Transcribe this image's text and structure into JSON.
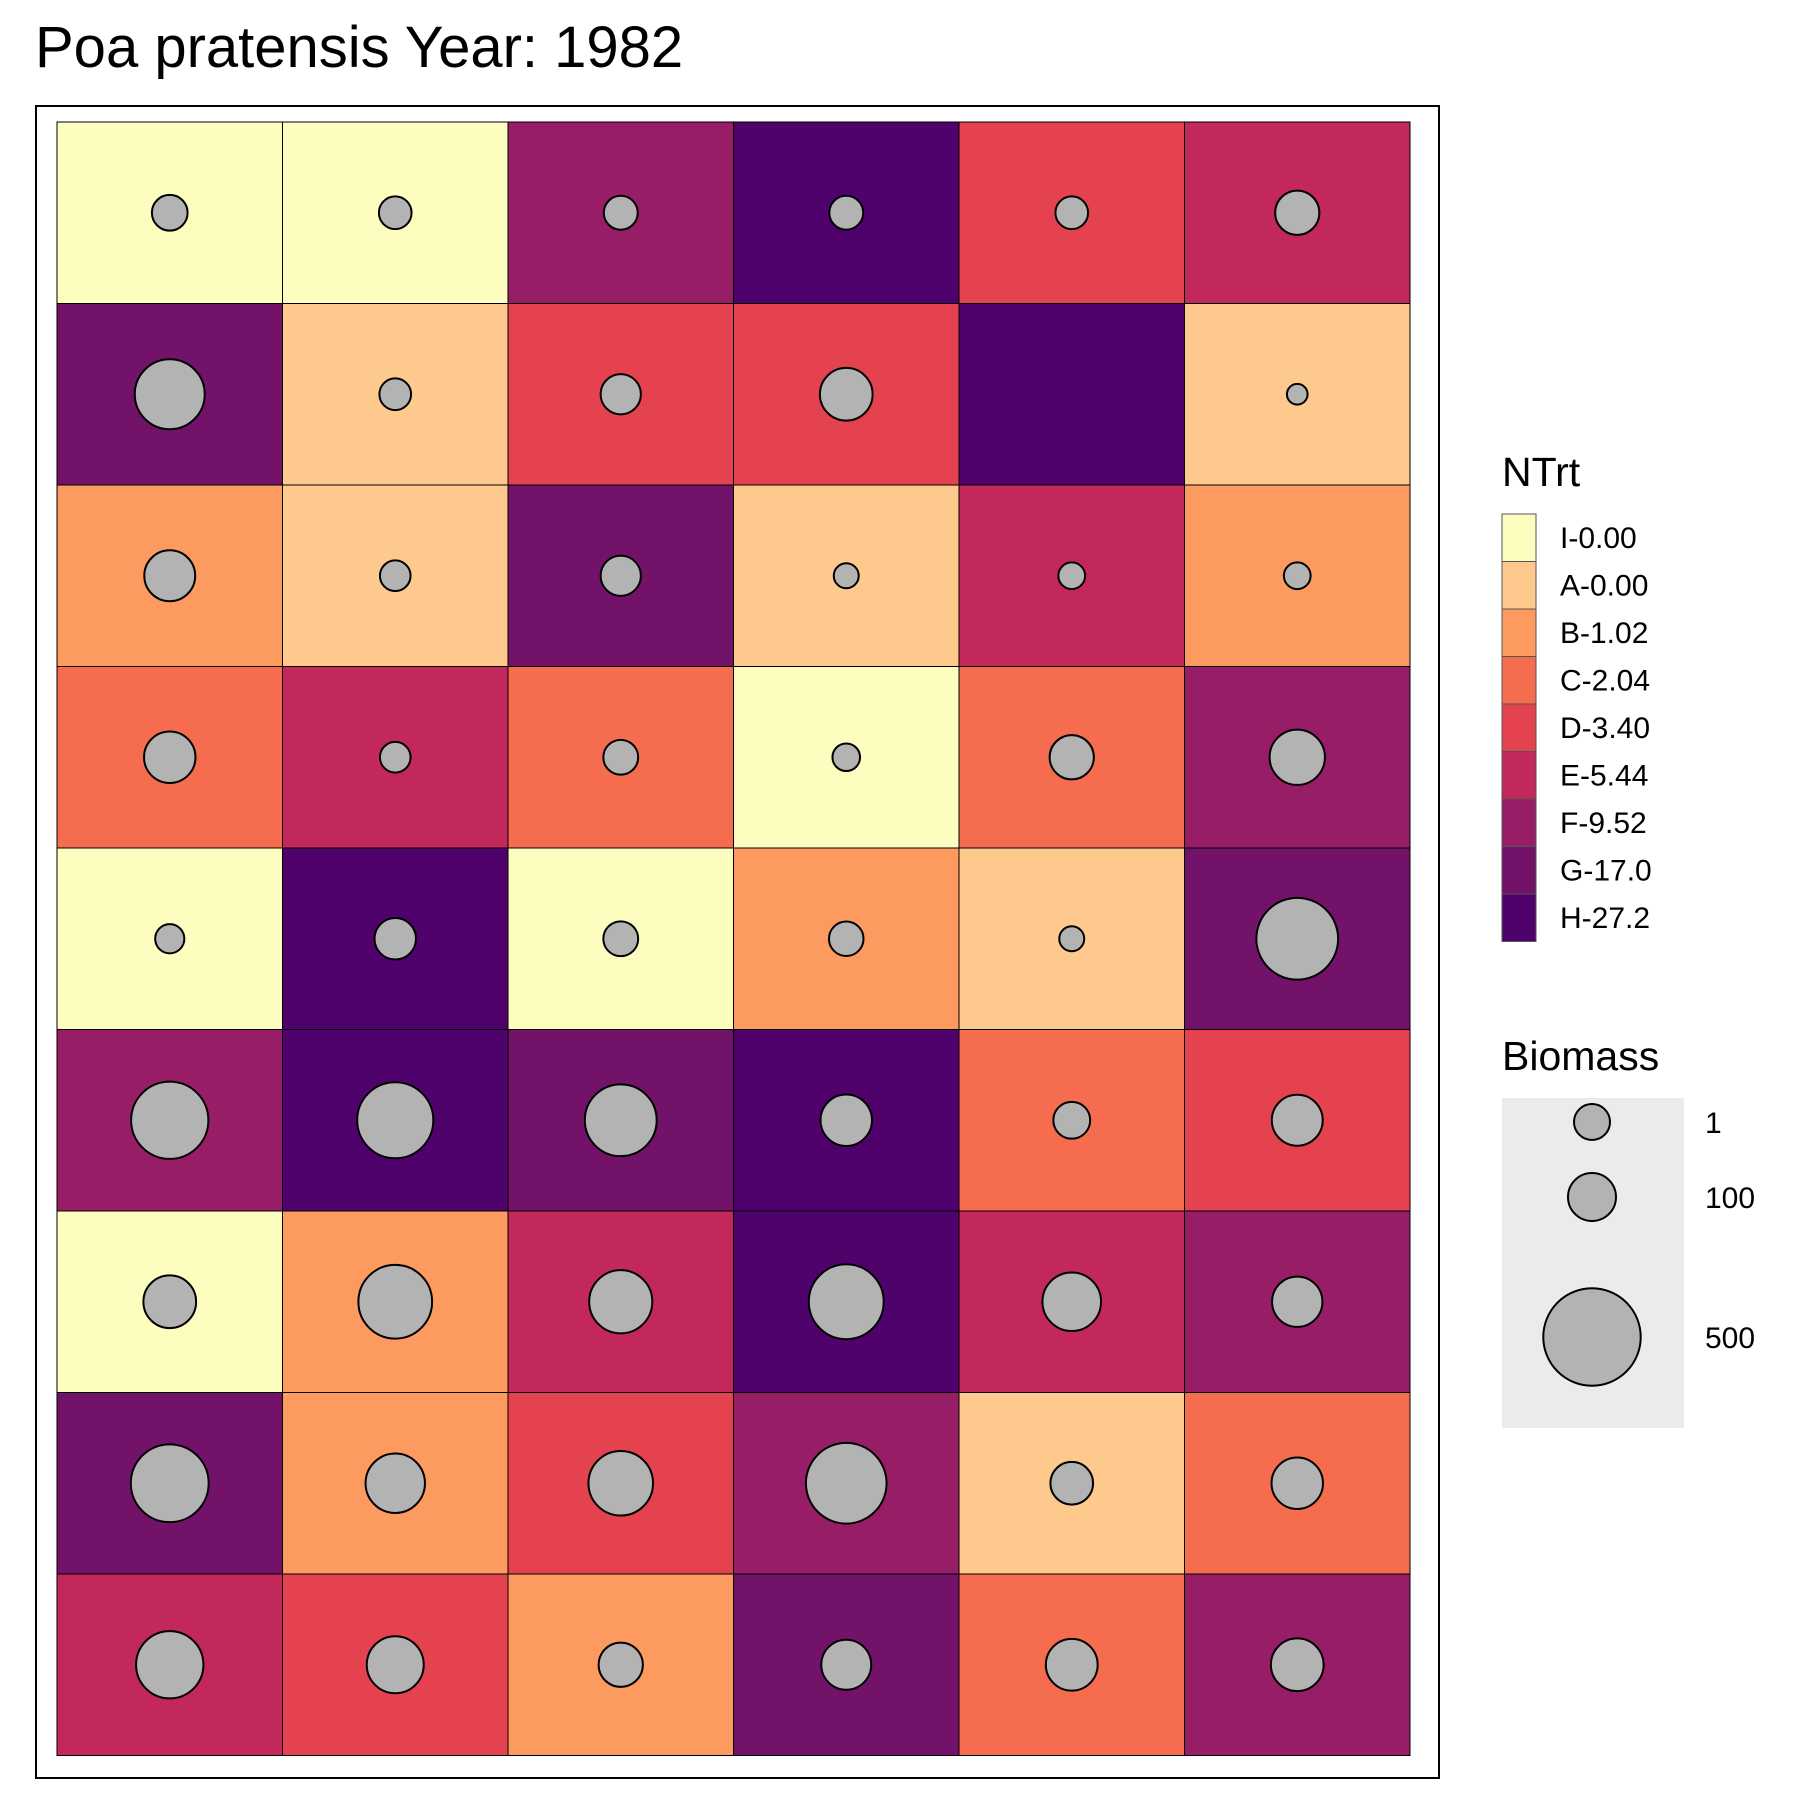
{
  "chart_data": {
    "type": "heatmap",
    "title": "Poa pratensis Year: 1982",
    "rows": 9,
    "cols": 6,
    "fill_legend": {
      "title": "NTrt",
      "levels": [
        {
          "label": "I-0.00",
          "color": "#FCFDBF"
        },
        {
          "label": "A-0.00",
          "color": "#FEC98D"
        },
        {
          "label": "B-1.02",
          "color": "#FD9A60"
        },
        {
          "label": "C-2.04",
          "color": "#F56C4F"
        },
        {
          "label": "D-3.40",
          "color": "#E3424E"
        },
        {
          "label": "E-5.44",
          "color": "#C22859"
        },
        {
          "label": "F-9.52",
          "color": "#981D67"
        },
        {
          "label": "G-17.0",
          "color": "#721369"
        },
        {
          "label": "H-27.2",
          "color": "#4F026B"
        }
      ]
    },
    "size_legend": {
      "title": "Biomass",
      "values": [
        1,
        100,
        500
      ],
      "labels": [
        "1",
        "100",
        "500"
      ]
    },
    "cells": [
      [
        {
          "trt": "I-0.00",
          "biomass": 48
        },
        {
          "trt": "I-0.00",
          "biomass": 38
        },
        {
          "trt": "F-9.52",
          "biomass": 42
        },
        {
          "trt": "H-27.2",
          "biomass": 42
        },
        {
          "trt": "D-3.40",
          "biomass": 38
        },
        {
          "trt": "E-5.44",
          "biomass": 82
        }
      ],
      [
        {
          "trt": "G-17.0",
          "biomass": 240
        },
        {
          "trt": "A-0.00",
          "biomass": 35
        },
        {
          "trt": "D-3.40",
          "biomass": 65
        },
        {
          "trt": "D-3.40",
          "biomass": 125
        },
        {
          "trt": "H-27.2",
          "biomass": null
        },
        {
          "trt": "A-0.00",
          "biomass": 10
        }
      ],
      [
        {
          "trt": "B-1.02",
          "biomass": 115
        },
        {
          "trt": "A-0.00",
          "biomass": 32
        },
        {
          "trt": "G-17.0",
          "biomass": 65
        },
        {
          "trt": "A-0.00",
          "biomass": 18
        },
        {
          "trt": "E-5.44",
          "biomass": 22
        },
        {
          "trt": "B-1.02",
          "biomass": 22
        }
      ],
      [
        {
          "trt": "C-2.04",
          "biomass": 118
        },
        {
          "trt": "E-5.44",
          "biomass": 32
        },
        {
          "trt": "C-2.04",
          "biomass": 45
        },
        {
          "trt": "I-0.00",
          "biomass": 24
        },
        {
          "trt": "C-2.04",
          "biomass": 82
        },
        {
          "trt": "F-9.52",
          "biomass": 140
        }
      ],
      [
        {
          "trt": "I-0.00",
          "biomass": 28
        },
        {
          "trt": "H-27.2",
          "biomass": 70
        },
        {
          "trt": "I-0.00",
          "biomass": 45
        },
        {
          "trt": "B-1.02",
          "biomass": 44
        },
        {
          "trt": "A-0.00",
          "biomass": 18
        },
        {
          "trt": "G-17.0",
          "biomass": 340
        }
      ],
      [
        {
          "trt": "F-9.52",
          "biomass": 300
        },
        {
          "trt": "H-27.2",
          "biomass": 290
        },
        {
          "trt": "G-17.0",
          "biomass": 255
        },
        {
          "trt": "H-27.2",
          "biomass": 118
        },
        {
          "trt": "C-2.04",
          "biomass": 52
        },
        {
          "trt": "D-3.40",
          "biomass": 115
        }
      ],
      [
        {
          "trt": "I-0.00",
          "biomass": 125
        },
        {
          "trt": "B-1.02",
          "biomass": 270
        },
        {
          "trt": "E-5.44",
          "biomass": 190
        },
        {
          "trt": "H-27.2",
          "biomass": 280
        },
        {
          "trt": "E-5.44",
          "biomass": 160
        },
        {
          "trt": "F-9.52",
          "biomass": 112
        }
      ],
      [
        {
          "trt": "G-17.0",
          "biomass": 305
        },
        {
          "trt": "B-1.02",
          "biomass": 165
        },
        {
          "trt": "D-3.40",
          "biomass": 200
        },
        {
          "trt": "F-9.52",
          "biomass": 330
        },
        {
          "trt": "A-0.00",
          "biomass": 75
        },
        {
          "trt": "C-2.04",
          "biomass": 118
        }
      ],
      [
        {
          "trt": "E-5.44",
          "biomass": 220
        },
        {
          "trt": "D-3.40",
          "biomass": 150
        },
        {
          "trt": "B-1.02",
          "biomass": 82
        },
        {
          "trt": "G-17.0",
          "biomass": 110
        },
        {
          "trt": "C-2.04",
          "biomass": 120
        },
        {
          "trt": "F-9.52",
          "biomass": 125
        }
      ]
    ],
    "point_color": "#B3B3B3",
    "background_color": "#FFFFFF",
    "size_legend_key_background": "#EBEBEB"
  }
}
